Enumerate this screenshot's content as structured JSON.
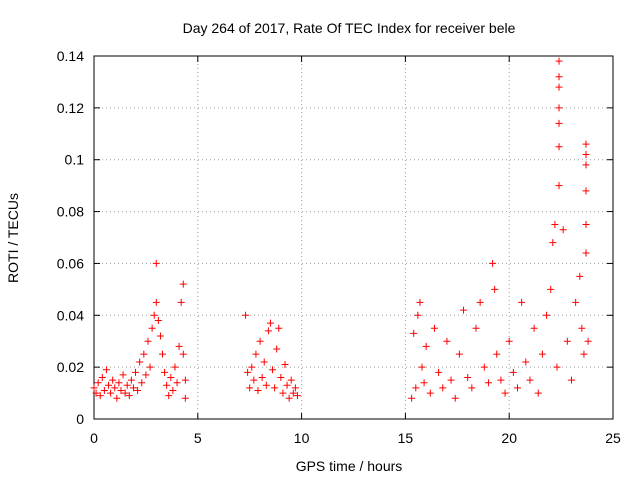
{
  "chart_data": {
    "type": "scatter",
    "title": "Day 264 of 2017, Rate Of TEC Index for receiver bele",
    "xlabel": "GPS time / hours",
    "ylabel": "ROTI / TECUs",
    "xlim": [
      0,
      25
    ],
    "ylim": [
      0,
      0.14
    ],
    "x_ticks": [
      0,
      5,
      10,
      15,
      20,
      25
    ],
    "x_tick_labels": [
      "0",
      "5",
      "10",
      "15",
      "20",
      "25"
    ],
    "y_ticks": [
      0,
      0.02,
      0.04,
      0.06,
      0.08,
      0.1,
      0.12,
      0.14
    ],
    "y_tick_labels": [
      "0",
      "0.02",
      "0.04",
      "0.06",
      "0.08",
      "0.1",
      "0.12",
      "0.14"
    ],
    "grid": true,
    "marker": "plus",
    "color": "#ff0000",
    "series": [
      {
        "points": [
          [
            0.0,
            0.012
          ],
          [
            0.1,
            0.01
          ],
          [
            0.2,
            0.014
          ],
          [
            0.3,
            0.009
          ],
          [
            0.4,
            0.016
          ],
          [
            0.5,
            0.011
          ],
          [
            0.6,
            0.019
          ],
          [
            0.7,
            0.013
          ],
          [
            0.8,
            0.01
          ],
          [
            0.9,
            0.015
          ],
          [
            1.0,
            0.012
          ],
          [
            1.1,
            0.008
          ],
          [
            1.2,
            0.014
          ],
          [
            1.3,
            0.011
          ],
          [
            1.4,
            0.017
          ],
          [
            1.5,
            0.01
          ],
          [
            1.6,
            0.013
          ],
          [
            1.7,
            0.009
          ],
          [
            1.8,
            0.015
          ],
          [
            1.9,
            0.012
          ],
          [
            2.0,
            0.018
          ],
          [
            2.1,
            0.011
          ],
          [
            2.2,
            0.022
          ],
          [
            2.3,
            0.014
          ],
          [
            2.4,
            0.025
          ],
          [
            2.5,
            0.017
          ],
          [
            2.6,
            0.03
          ],
          [
            2.7,
            0.02
          ],
          [
            2.8,
            0.035
          ],
          [
            2.9,
            0.04
          ],
          [
            3.0,
            0.045
          ],
          [
            3.0,
            0.06
          ],
          [
            3.1,
            0.038
          ],
          [
            3.2,
            0.032
          ],
          [
            3.3,
            0.025
          ],
          [
            3.4,
            0.018
          ],
          [
            3.5,
            0.013
          ],
          [
            3.6,
            0.009
          ],
          [
            3.7,
            0.016
          ],
          [
            3.8,
            0.011
          ],
          [
            3.9,
            0.02
          ],
          [
            4.0,
            0.014
          ],
          [
            4.1,
            0.028
          ],
          [
            4.2,
            0.045
          ],
          [
            4.3,
            0.052
          ],
          [
            4.3,
            0.025
          ],
          [
            4.4,
            0.015
          ],
          [
            4.4,
            0.008
          ],
          [
            7.3,
            0.04
          ],
          [
            7.4,
            0.018
          ],
          [
            7.5,
            0.012
          ],
          [
            7.6,
            0.02
          ],
          [
            7.7,
            0.015
          ],
          [
            7.8,
            0.025
          ],
          [
            7.9,
            0.011
          ],
          [
            8.0,
            0.03
          ],
          [
            8.1,
            0.016
          ],
          [
            8.2,
            0.022
          ],
          [
            8.3,
            0.013
          ],
          [
            8.4,
            0.034
          ],
          [
            8.5,
            0.037
          ],
          [
            8.6,
            0.019
          ],
          [
            8.7,
            0.012
          ],
          [
            8.8,
            0.027
          ],
          [
            8.9,
            0.035
          ],
          [
            9.0,
            0.016
          ],
          [
            9.1,
            0.01
          ],
          [
            9.2,
            0.021
          ],
          [
            9.3,
            0.013
          ],
          [
            9.4,
            0.008
          ],
          [
            9.5,
            0.015
          ],
          [
            9.6,
            0.01
          ],
          [
            9.7,
            0.012
          ],
          [
            9.8,
            0.009
          ],
          [
            15.3,
            0.008
          ],
          [
            15.4,
            0.033
          ],
          [
            15.5,
            0.012
          ],
          [
            15.6,
            0.04
          ],
          [
            15.7,
            0.045
          ],
          [
            15.8,
            0.02
          ],
          [
            15.9,
            0.014
          ],
          [
            16.0,
            0.028
          ],
          [
            16.2,
            0.01
          ],
          [
            16.4,
            0.035
          ],
          [
            16.6,
            0.018
          ],
          [
            16.8,
            0.012
          ],
          [
            17.0,
            0.03
          ],
          [
            17.2,
            0.015
          ],
          [
            17.4,
            0.008
          ],
          [
            17.6,
            0.025
          ],
          [
            17.8,
            0.042
          ],
          [
            18.0,
            0.016
          ],
          [
            18.2,
            0.012
          ],
          [
            18.4,
            0.035
          ],
          [
            18.6,
            0.045
          ],
          [
            18.8,
            0.02
          ],
          [
            19.0,
            0.014
          ],
          [
            19.2,
            0.06
          ],
          [
            19.3,
            0.05
          ],
          [
            19.4,
            0.025
          ],
          [
            19.6,
            0.015
          ],
          [
            19.8,
            0.01
          ],
          [
            20.0,
            0.03
          ],
          [
            20.2,
            0.018
          ],
          [
            20.4,
            0.012
          ],
          [
            20.6,
            0.045
          ],
          [
            20.8,
            0.022
          ],
          [
            21.0,
            0.015
          ],
          [
            21.2,
            0.035
          ],
          [
            21.4,
            0.01
          ],
          [
            21.6,
            0.025
          ],
          [
            21.8,
            0.04
          ],
          [
            22.0,
            0.05
          ],
          [
            22.1,
            0.068
          ],
          [
            22.2,
            0.075
          ],
          [
            22.3,
            0.02
          ],
          [
            22.4,
            0.138
          ],
          [
            22.4,
            0.132
          ],
          [
            22.4,
            0.128
          ],
          [
            22.4,
            0.12
          ],
          [
            22.4,
            0.114
          ],
          [
            22.4,
            0.105
          ],
          [
            22.4,
            0.09
          ],
          [
            22.6,
            0.073
          ],
          [
            22.8,
            0.03
          ],
          [
            23.0,
            0.015
          ],
          [
            23.2,
            0.045
          ],
          [
            23.4,
            0.055
          ],
          [
            23.5,
            0.035
          ],
          [
            23.6,
            0.025
          ],
          [
            23.7,
            0.106
          ],
          [
            23.7,
            0.102
          ],
          [
            23.7,
            0.098
          ],
          [
            23.7,
            0.088
          ],
          [
            23.7,
            0.075
          ],
          [
            23.7,
            0.064
          ],
          [
            23.8,
            0.03
          ]
        ]
      }
    ]
  }
}
